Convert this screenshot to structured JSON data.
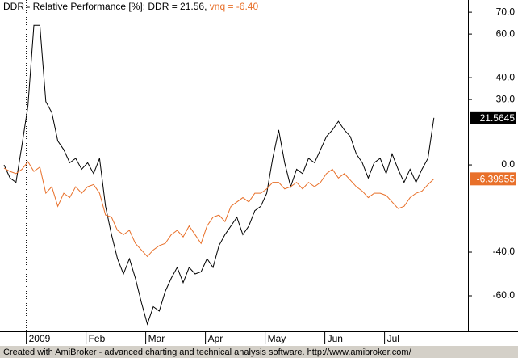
{
  "chart_data": {
    "type": "line",
    "title": [
      "DDR - Relative Performance [%]: DDR = 21.56,",
      "vnq = -6.40"
    ],
    "footer": "Created with AmiBroker - advanced charting and technical analysis software. http://www.amibroker.com/",
    "categories": [
      null,
      null,
      null,
      null,
      "2009",
      null,
      null,
      null,
      null,
      null,
      null,
      null,
      null,
      null,
      "Feb",
      null,
      null,
      null,
      null,
      null,
      null,
      null,
      null,
      null,
      "Mar",
      null,
      null,
      null,
      null,
      null,
      null,
      null,
      null,
      null,
      "Apr",
      null,
      null,
      null,
      null,
      null,
      null,
      null,
      null,
      null,
      "May",
      null,
      null,
      null,
      null,
      null,
      null,
      null,
      null,
      null,
      "Jun",
      null,
      null,
      null,
      null,
      null,
      null,
      null,
      null,
      null,
      "Jul",
      null,
      null,
      null,
      null,
      null,
      null,
      null,
      null
    ],
    "series": [
      {
        "name": "DDR",
        "color": "#000000",
        "last_value": 21.5645,
        "values": [
          0,
          -6,
          -8,
          9,
          27,
          64,
          64,
          29,
          24,
          11,
          7,
          1,
          3,
          -2,
          1,
          -4,
          3,
          -19,
          -32,
          -43,
          -50,
          -43,
          -52,
          -63,
          -73,
          -65,
          -67,
          -58,
          -52,
          -47,
          -54,
          -47,
          -50,
          -49,
          -43,
          -47,
          -37,
          -32,
          -28,
          -24,
          -32,
          -28,
          -21,
          -19,
          -13,
          3,
          16,
          1,
          -10,
          -2,
          -4,
          3,
          1,
          7,
          13,
          16,
          20,
          16,
          13,
          5,
          1,
          -6,
          1,
          3,
          -4,
          5,
          -2,
          -8,
          -2,
          -8,
          -2,
          3,
          21.56
        ]
      },
      {
        "name": "vnq",
        "color": "#e8702a",
        "last_value": -6.39955,
        "values": [
          -1.5,
          -3,
          -4,
          -2,
          1.5,
          -3,
          -1,
          -13,
          -10,
          -19,
          -13,
          -15,
          -10,
          -13,
          -10,
          -9,
          -13,
          -23,
          -24,
          -30,
          -32,
          -30,
          -36,
          -39,
          -42,
          -39,
          -37,
          -36,
          -32,
          -30,
          -33,
          -28,
          -32,
          -36,
          -28,
          -24,
          -23,
          -26,
          -19,
          -17,
          -15,
          -17,
          -13,
          -13,
          -11,
          -8,
          -8,
          -11,
          -10,
          -8,
          -11,
          -8,
          -10,
          -8,
          -4,
          -2,
          -6,
          -4,
          -7,
          -10,
          -12,
          -15,
          -13,
          -13,
          -14,
          -17,
          -20,
          -19,
          -15,
          -13,
          -12,
          -9,
          -6.4
        ]
      }
    ],
    "ylim": [
      -76.3,
      75.6
    ],
    "yticks": [
      {
        "value": 70,
        "label": "70.0"
      },
      {
        "value": 60,
        "label": "60.0"
      },
      {
        "value": 40,
        "label": "40.0"
      },
      {
        "value": 30,
        "label": "30.0"
      },
      {
        "value": 0,
        "label": "0.0"
      },
      {
        "value": -40,
        "label": "-40.0"
      },
      {
        "value": -60,
        "label": "-60.0"
      }
    ]
  }
}
